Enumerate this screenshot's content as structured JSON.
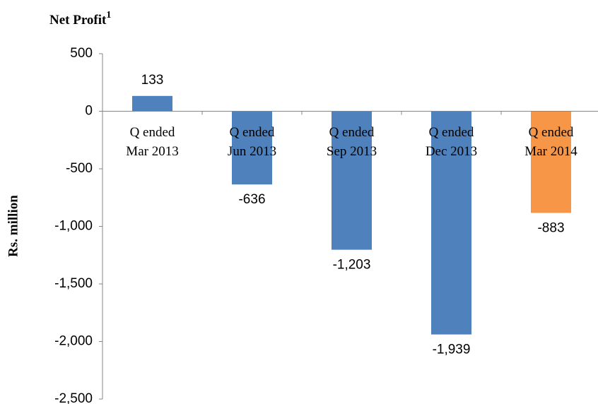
{
  "chart_data": {
    "type": "bar",
    "title": "Net Profit",
    "title_note": "1",
    "ylabel": "Rs. million",
    "categories": [
      [
        "Q ended",
        "Mar 2013"
      ],
      [
        "Q ended",
        "Jun 2013"
      ],
      [
        "Q ended",
        "Sep 2013"
      ],
      [
        "Q ended",
        "Dec 2013"
      ],
      [
        "Q ended",
        "Mar 2014"
      ]
    ],
    "values": [
      133,
      -636,
      -1203,
      -1939,
      -883
    ],
    "value_labels": [
      "133",
      "-636",
      "-1,203",
      "-1,939",
      "-883"
    ],
    "colors": [
      "#4f81bd",
      "#4f81bd",
      "#4f81bd",
      "#4f81bd",
      "#f79646"
    ],
    "ylim": [
      -2500,
      500
    ],
    "yticks": [
      500,
      0,
      -500,
      {
        "value": -1000,
        "label": "-1,000"
      },
      {
        "value": -1500,
        "label": "-1,500"
      },
      {
        "value": -2000,
        "label": "-2,000"
      },
      {
        "value": -2500,
        "label": "-2,500"
      }
    ],
    "grid": false
  }
}
